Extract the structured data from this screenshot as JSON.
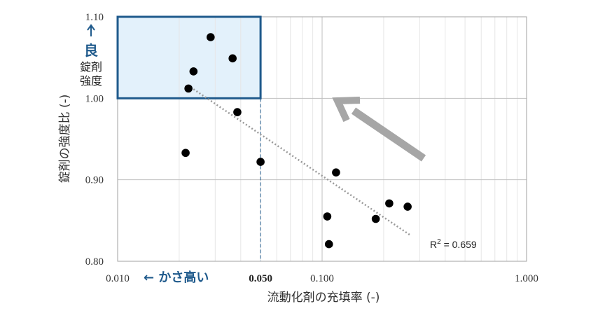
{
  "colors": {
    "accent": "#1f5a8c",
    "highlight_fill": "#e3f1fb",
    "point": "#000000",
    "trend": "#999999",
    "arrow": "#a6a6a6",
    "grid": "#bfbfbf"
  },
  "annotations": {
    "good_mark": "良",
    "good_line1": "錠剤",
    "good_line2": "強度",
    "bulky_label": "← かさ高い",
    "r2_label": "R",
    "r2_sup": "2",
    "r2_value": " = 0.659"
  },
  "chart_data": {
    "type": "scatter",
    "title": "",
    "xlabel": "流動化剤の充填率 (-)",
    "ylabel": "錠剤の強度比 (-)",
    "x_scale": "log",
    "xlim": [
      0.01,
      1.0
    ],
    "ylim": [
      0.8,
      1.1
    ],
    "x_ticks": [
      {
        "value": 0.01,
        "label": "0.010"
      },
      {
        "value": 0.05,
        "label": "0.050",
        "bold": true
      },
      {
        "value": 0.1,
        "label": "0.100"
      },
      {
        "value": 1.0,
        "label": "1.000"
      }
    ],
    "y_ticks": [
      {
        "value": 0.8,
        "label": "0.80"
      },
      {
        "value": 0.9,
        "label": "0.90"
      },
      {
        "value": 1.0,
        "label": "1.00"
      },
      {
        "value": 1.1,
        "label": "1.10"
      }
    ],
    "grid": true,
    "points": [
      {
        "x": 0.0285,
        "y": 1.075
      },
      {
        "x": 0.0365,
        "y": 1.049
      },
      {
        "x": 0.0235,
        "y": 1.033
      },
      {
        "x": 0.0222,
        "y": 1.012
      },
      {
        "x": 0.0385,
        "y": 0.983
      },
      {
        "x": 0.0215,
        "y": 0.933
      },
      {
        "x": 0.05,
        "y": 0.922
      },
      {
        "x": 0.117,
        "y": 0.909
      },
      {
        "x": 0.106,
        "y": 0.855
      },
      {
        "x": 0.108,
        "y": 0.821
      },
      {
        "x": 0.183,
        "y": 0.852
      },
      {
        "x": 0.213,
        "y": 0.871
      },
      {
        "x": 0.262,
        "y": 0.867
      }
    ],
    "trendline": {
      "x": [
        0.022,
        0.27
      ],
      "y": [
        1.016,
        0.832
      ],
      "r2": 0.659
    },
    "highlight_region": {
      "x": [
        0.01,
        0.05
      ],
      "y": [
        1.0,
        1.1
      ]
    },
    "reference_line_x": 0.05
  }
}
